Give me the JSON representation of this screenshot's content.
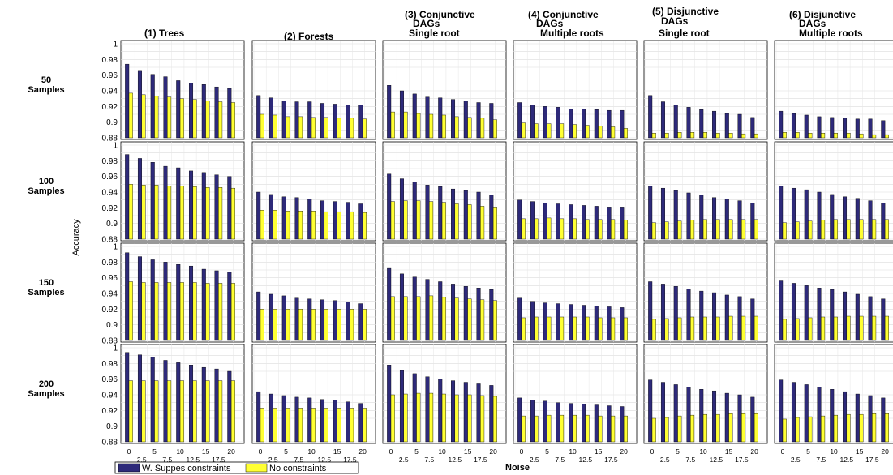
{
  "chart_data": {
    "type": "bar",
    "xlabel": "Noise",
    "ylabel": "Accuracy",
    "ylim": [
      0.88,
      1.0
    ],
    "yticks": [
      "0.88",
      "0.9",
      "0.92",
      "0.94",
      "0.96",
      "0.98",
      "1"
    ],
    "x": [
      0,
      2.5,
      5,
      7.5,
      10,
      12.5,
      15,
      17.5,
      20
    ],
    "xticks_upper": [
      "0",
      "5",
      "10",
      "15",
      "20"
    ],
    "xticks_lower": [
      "2.5",
      "7.5",
      "12.5",
      "17.5"
    ],
    "grid": true,
    "legend_position": "bottom-left",
    "legend": [
      {
        "name": "W. Suppes constraints",
        "color": "#2e2a7a"
      },
      {
        "name": "No constraints",
        "color": "#ffff33"
      }
    ],
    "columns": [
      {
        "lines": [
          "(1) Trees"
        ]
      },
      {
        "lines": [
          "(2) Forests"
        ]
      },
      {
        "lines": [
          "(3) Conjunctive",
          "DAGs",
          "Single root"
        ]
      },
      {
        "lines": [
          "(4) Conjunctive",
          "DAGs",
          "Multiple roots"
        ]
      },
      {
        "lines": [
          "(5) Disjunctive",
          "DAGs",
          "Single root"
        ]
      },
      {
        "lines": [
          "(6) Disjunctive",
          "DAGs",
          "Multiple roots"
        ]
      }
    ],
    "rows": [
      {
        "lines": [
          "50",
          "Samples"
        ]
      },
      {
        "lines": [
          "100",
          "Samples"
        ]
      },
      {
        "lines": [
          "150",
          "Samples"
        ]
      },
      {
        "lines": [
          "200",
          "Samples"
        ]
      }
    ],
    "panels": [
      [
        {
          "suppes": [
            0.974,
            0.966,
            0.961,
            0.958,
            0.953,
            0.95,
            0.948,
            0.945,
            0.943
          ],
          "none": [
            0.937,
            0.935,
            0.933,
            0.932,
            0.93,
            0.929,
            0.927,
            0.926,
            0.925
          ]
        },
        {
          "suppes": [
            0.934,
            0.931,
            0.927,
            0.926,
            0.926,
            0.924,
            0.923,
            0.922,
            0.922
          ],
          "none": [
            0.91,
            0.909,
            0.907,
            0.907,
            0.906,
            0.906,
            0.905,
            0.905,
            0.904
          ]
        },
        {
          "suppes": [
            0.947,
            0.94,
            0.936,
            0.932,
            0.931,
            0.929,
            0.927,
            0.925,
            0.924
          ],
          "none": [
            0.913,
            0.913,
            0.911,
            0.91,
            0.909,
            0.907,
            0.906,
            0.905,
            0.903
          ]
        },
        {
          "suppes": [
            0.925,
            0.922,
            0.92,
            0.919,
            0.917,
            0.917,
            0.916,
            0.915,
            0.915
          ],
          "none": [
            0.899,
            0.898,
            0.898,
            0.898,
            0.897,
            0.896,
            0.895,
            0.894,
            0.892
          ]
        },
        {
          "suppes": [
            0.934,
            0.926,
            0.922,
            0.919,
            0.916,
            0.914,
            0.911,
            0.91,
            0.906
          ],
          "none": [
            0.886,
            0.886,
            0.887,
            0.887,
            0.887,
            0.886,
            0.886,
            0.885,
            0.885
          ]
        },
        {
          "suppes": [
            0.914,
            0.911,
            0.909,
            0.907,
            0.906,
            0.905,
            0.904,
            0.904,
            0.902
          ],
          "none": [
            0.887,
            0.887,
            0.886,
            0.886,
            0.886,
            0.886,
            0.885,
            0.884,
            0.884
          ]
        }
      ],
      [
        {
          "suppes": [
            0.988,
            0.983,
            0.978,
            0.973,
            0.971,
            0.967,
            0.965,
            0.962,
            0.96
          ],
          "none": [
            0.95,
            0.949,
            0.949,
            0.948,
            0.948,
            0.947,
            0.946,
            0.946,
            0.945
          ]
        },
        {
          "suppes": [
            0.94,
            0.937,
            0.934,
            0.933,
            0.931,
            0.929,
            0.928,
            0.927,
            0.925
          ],
          "none": [
            0.917,
            0.917,
            0.916,
            0.916,
            0.916,
            0.915,
            0.915,
            0.915,
            0.914
          ]
        },
        {
          "suppes": [
            0.963,
            0.957,
            0.953,
            0.949,
            0.947,
            0.944,
            0.942,
            0.94,
            0.936
          ],
          "none": [
            0.928,
            0.929,
            0.929,
            0.928,
            0.927,
            0.925,
            0.924,
            0.922,
            0.921
          ]
        },
        {
          "suppes": [
            0.93,
            0.928,
            0.926,
            0.925,
            0.924,
            0.923,
            0.922,
            0.921,
            0.921
          ],
          "none": [
            0.906,
            0.906,
            0.907,
            0.906,
            0.906,
            0.905,
            0.905,
            0.905,
            0.904
          ]
        },
        {
          "suppes": [
            0.948,
            0.945,
            0.942,
            0.939,
            0.936,
            0.933,
            0.931,
            0.929,
            0.926
          ],
          "none": [
            0.901,
            0.902,
            0.903,
            0.904,
            0.905,
            0.905,
            0.905,
            0.905,
            0.905
          ]
        },
        {
          "suppes": [
            0.948,
            0.945,
            0.943,
            0.94,
            0.937,
            0.934,
            0.932,
            0.929,
            0.926
          ],
          "none": [
            0.901,
            0.902,
            0.903,
            0.904,
            0.905,
            0.905,
            0.905,
            0.905,
            0.905
          ]
        }
      ],
      [
        {
          "suppes": [
            0.992,
            0.987,
            0.983,
            0.98,
            0.977,
            0.975,
            0.971,
            0.969,
            0.967
          ],
          "none": [
            0.955,
            0.954,
            0.954,
            0.954,
            0.954,
            0.954,
            0.953,
            0.953,
            0.953
          ]
        },
        {
          "suppes": [
            0.942,
            0.939,
            0.937,
            0.934,
            0.933,
            0.932,
            0.931,
            0.929,
            0.927
          ],
          "none": [
            0.92,
            0.92,
            0.92,
            0.92,
            0.92,
            0.92,
            0.92,
            0.92,
            0.92
          ]
        },
        {
          "suppes": [
            0.972,
            0.965,
            0.961,
            0.958,
            0.955,
            0.952,
            0.949,
            0.947,
            0.945
          ],
          "none": [
            0.936,
            0.936,
            0.936,
            0.937,
            0.935,
            0.934,
            0.933,
            0.932,
            0.931
          ]
        },
        {
          "suppes": [
            0.934,
            0.93,
            0.928,
            0.927,
            0.926,
            0.925,
            0.924,
            0.923,
            0.922
          ],
          "none": [
            0.909,
            0.91,
            0.91,
            0.91,
            0.91,
            0.91,
            0.909,
            0.909,
            0.909
          ]
        },
        {
          "suppes": [
            0.955,
            0.952,
            0.949,
            0.946,
            0.943,
            0.941,
            0.938,
            0.936,
            0.933
          ],
          "none": [
            0.907,
            0.908,
            0.909,
            0.91,
            0.91,
            0.91,
            0.911,
            0.911,
            0.911
          ]
        },
        {
          "suppes": [
            0.956,
            0.953,
            0.95,
            0.947,
            0.945,
            0.942,
            0.939,
            0.936,
            0.933
          ],
          "none": [
            0.907,
            0.908,
            0.909,
            0.91,
            0.91,
            0.911,
            0.911,
            0.911,
            0.911
          ]
        }
      ],
      [
        {
          "suppes": [
            0.994,
            0.991,
            0.988,
            0.984,
            0.981,
            0.978,
            0.975,
            0.973,
            0.97
          ],
          "none": [
            0.958,
            0.958,
            0.958,
            0.958,
            0.958,
            0.958,
            0.958,
            0.958,
            0.958
          ]
        },
        {
          "suppes": [
            0.944,
            0.941,
            0.939,
            0.937,
            0.936,
            0.934,
            0.933,
            0.931,
            0.929
          ],
          "none": [
            0.923,
            0.923,
            0.923,
            0.923,
            0.923,
            0.923,
            0.923,
            0.923,
            0.923
          ]
        },
        {
          "suppes": [
            0.978,
            0.971,
            0.967,
            0.963,
            0.96,
            0.958,
            0.956,
            0.954,
            0.952
          ],
          "none": [
            0.94,
            0.941,
            0.942,
            0.942,
            0.941,
            0.94,
            0.94,
            0.939,
            0.938
          ]
        },
        {
          "suppes": [
            0.936,
            0.933,
            0.932,
            0.93,
            0.929,
            0.928,
            0.927,
            0.926,
            0.925
          ],
          "none": [
            0.913,
            0.913,
            0.914,
            0.914,
            0.914,
            0.914,
            0.913,
            0.913,
            0.913
          ]
        },
        {
          "suppes": [
            0.959,
            0.956,
            0.953,
            0.95,
            0.947,
            0.945,
            0.942,
            0.94,
            0.937
          ],
          "none": [
            0.91,
            0.911,
            0.913,
            0.914,
            0.915,
            0.915,
            0.916,
            0.916,
            0.916
          ]
        },
        {
          "suppes": [
            0.959,
            0.956,
            0.953,
            0.95,
            0.947,
            0.944,
            0.941,
            0.939,
            0.936
          ],
          "none": [
            0.909,
            0.911,
            0.912,
            0.913,
            0.914,
            0.915,
            0.915,
            0.916,
            0.916
          ]
        }
      ]
    ]
  }
}
